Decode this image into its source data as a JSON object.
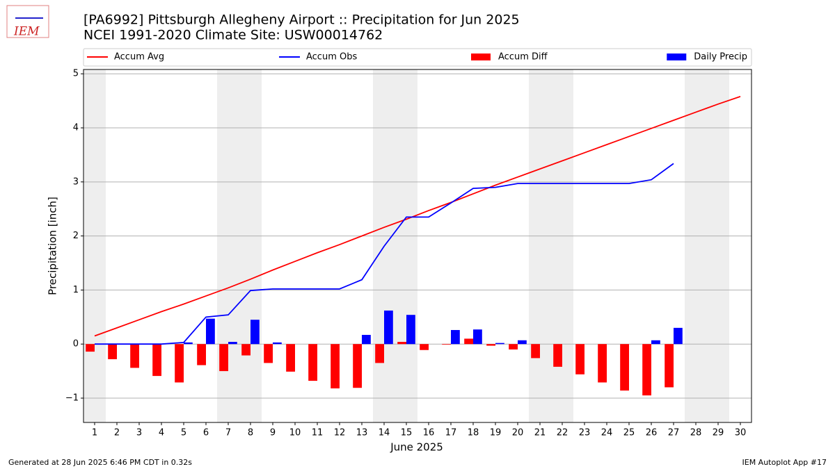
{
  "chart_data": {
    "type": "combo",
    "title": "[PA6992] Pittsburgh Allegheny Airport :: Precipitation for Jun 2025",
    "subtitle": "NCEI 1991-2020 Climate Site: USW00014762",
    "logo_text": "IEM",
    "x_label": "June 2025",
    "y_label": "Precipitation [inch]",
    "footer_left": "Generated at 28 Jun 2025 6:46 PM CDT in 0.32s",
    "footer_right": "IEM Autoplot App #17",
    "xlim": [
      0.5,
      30.5
    ],
    "xticks": [
      1,
      2,
      3,
      4,
      5,
      6,
      7,
      8,
      9,
      10,
      11,
      12,
      13,
      14,
      15,
      16,
      17,
      18,
      19,
      20,
      21,
      22,
      23,
      24,
      25,
      26,
      27,
      28,
      29,
      30
    ],
    "ylim": [
      -1.45,
      5.08
    ],
    "yticks": [
      5,
      4,
      3,
      2,
      1,
      0,
      {
        "value": -1,
        "label": "−1"
      }
    ],
    "grid": true,
    "shaded_spans": [
      [
        0.5,
        1.5
      ],
      [
        6.5,
        8.5
      ],
      [
        13.5,
        15.5
      ],
      [
        20.5,
        22.5
      ],
      [
        27.5,
        29.5
      ]
    ],
    "series": [
      {
        "name": "Accum Avg",
        "kind": "line",
        "color": "#ff0000",
        "x": [
          1,
          2,
          3,
          4,
          5,
          6,
          7,
          8,
          9,
          10,
          11,
          12,
          13,
          14,
          15,
          16,
          17,
          18,
          19,
          20,
          21,
          22,
          23,
          24,
          25,
          26,
          27,
          28,
          29,
          30
        ],
        "values": [
          0.15,
          0.3,
          0.45,
          0.6,
          0.74,
          0.89,
          1.04,
          1.2,
          1.37,
          1.53,
          1.69,
          1.84,
          2.0,
          2.16,
          2.31,
          2.47,
          2.62,
          2.78,
          2.94,
          3.09,
          3.24,
          3.39,
          3.54,
          3.69,
          3.84,
          3.99,
          4.14,
          4.29,
          4.44,
          4.58
        ]
      },
      {
        "name": "Accum Obs",
        "kind": "line",
        "color": "#0000ff",
        "x": [
          1,
          2,
          3,
          4,
          5,
          6,
          7,
          8,
          9,
          10,
          11,
          12,
          13,
          14,
          15,
          16,
          17,
          18,
          19,
          20,
          21,
          22,
          23,
          24,
          25,
          26,
          27
        ],
        "values": [
          0,
          0,
          0,
          0,
          0.03,
          0.5,
          0.54,
          0.99,
          1.02,
          1.02,
          1.02,
          1.02,
          1.19,
          1.81,
          2.35,
          2.35,
          2.61,
          2.88,
          2.9,
          2.97,
          2.97,
          2.97,
          2.97,
          2.97,
          2.97,
          3.04,
          3.34
        ]
      },
      {
        "name": "Accum Diff",
        "kind": "bar",
        "color": "#ff0000",
        "x": [
          1,
          2,
          3,
          4,
          5,
          6,
          7,
          8,
          9,
          10,
          11,
          12,
          13,
          14,
          15,
          16,
          17,
          18,
          19,
          20,
          21,
          22,
          23,
          24,
          25,
          26,
          27
        ],
        "values": [
          -0.14,
          -0.28,
          -0.44,
          -0.59,
          -0.71,
          -0.39,
          -0.5,
          -0.21,
          -0.35,
          -0.51,
          -0.68,
          -0.82,
          -0.81,
          -0.35,
          0.04,
          -0.11,
          -0.01,
          0.1,
          -0.03,
          -0.1,
          -0.26,
          -0.42,
          -0.56,
          -0.71,
          -0.86,
          -0.95,
          -0.8
        ]
      },
      {
        "name": "Daily Precip",
        "kind": "bar",
        "color": "#0000ff",
        "x": [
          1,
          2,
          3,
          4,
          5,
          6,
          7,
          8,
          9,
          10,
          11,
          12,
          13,
          14,
          15,
          16,
          17,
          18,
          19,
          20,
          21,
          22,
          23,
          24,
          25,
          26,
          27
        ],
        "values": [
          0,
          0,
          0,
          0,
          0.03,
          0.47,
          0.04,
          0.45,
          0.03,
          0,
          0,
          0,
          0.17,
          0.62,
          0.54,
          0,
          0.26,
          0.27,
          0.02,
          0.07,
          0,
          0,
          0,
          0,
          0,
          0.07,
          0.3
        ]
      }
    ]
  }
}
